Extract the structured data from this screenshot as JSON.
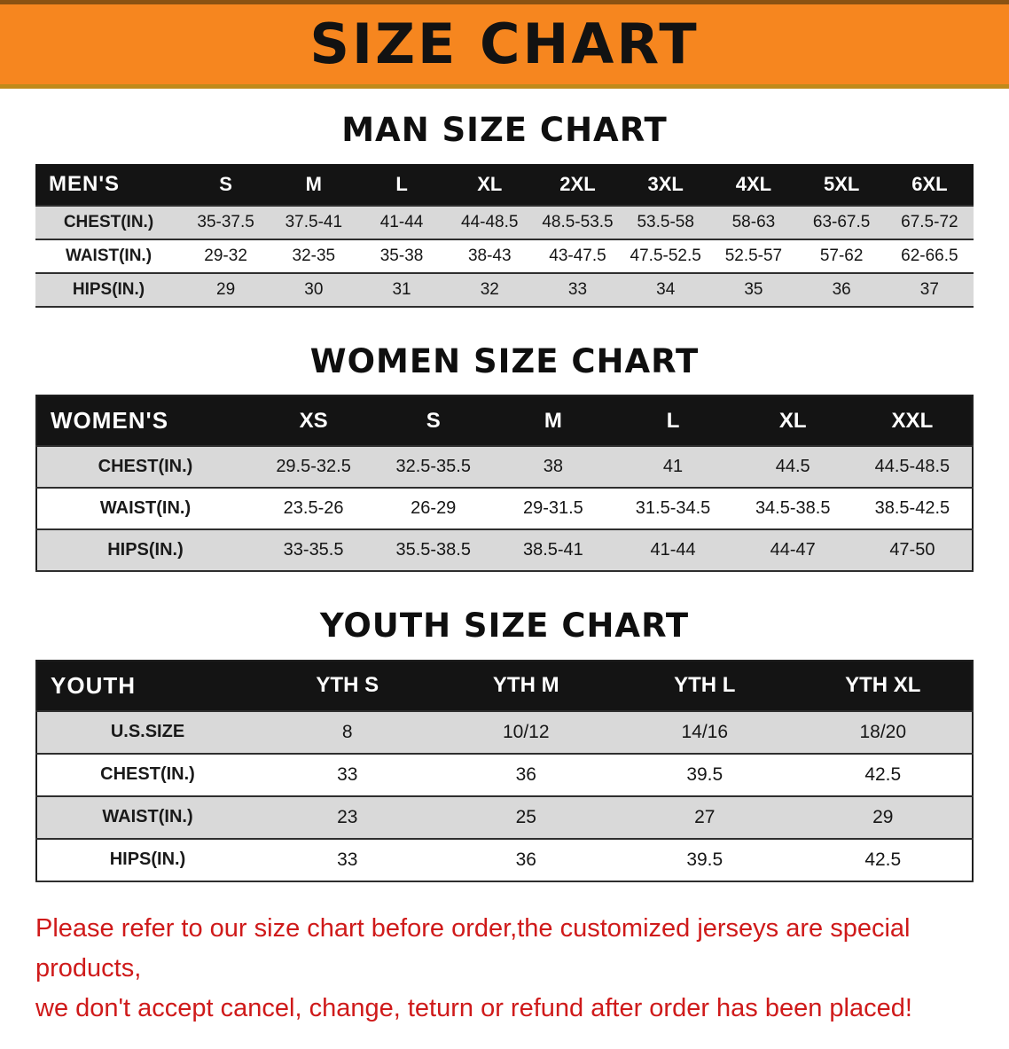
{
  "banner": {
    "title": "SIZE CHART"
  },
  "colors": {
    "banner_orange": "#f6861f",
    "table_header_black": "#141414",
    "row_gray": "#d9d9d9",
    "disclaimer_red": "#cf1a1a"
  },
  "sections": [
    {
      "heading": "MAN SIZE CHART",
      "table": {
        "corner": "MEN'S",
        "columns": [
          "S",
          "M",
          "L",
          "XL",
          "2XL",
          "3XL",
          "4XL",
          "5XL",
          "6XL"
        ],
        "rows": [
          {
            "label": "CHEST(IN.)",
            "values": [
              "35-37.5",
              "37.5-41",
              "41-44",
              "44-48.5",
              "48.5-53.5",
              "53.5-58",
              "58-63",
              "63-67.5",
              "67.5-72"
            ]
          },
          {
            "label": "WAIST(IN.)",
            "values": [
              "29-32",
              "32-35",
              "35-38",
              "38-43",
              "43-47.5",
              "47.5-52.5",
              "52.5-57",
              "57-62",
              "62-66.5"
            ]
          },
          {
            "label": "HIPS(IN.)",
            "values": [
              "29",
              "30",
              "31",
              "32",
              "33",
              "34",
              "35",
              "36",
              "37"
            ]
          }
        ]
      }
    },
    {
      "heading": "WOMEN SIZE CHART",
      "table": {
        "corner": "WOMEN'S",
        "columns": [
          "XS",
          "S",
          "M",
          "L",
          "XL",
          "XXL"
        ],
        "rows": [
          {
            "label": "CHEST(IN.)",
            "values": [
              "29.5-32.5",
              "32.5-35.5",
              "38",
              "41",
              "44.5",
              "44.5-48.5"
            ]
          },
          {
            "label": "WAIST(IN.)",
            "values": [
              "23.5-26",
              "26-29",
              "29-31.5",
              "31.5-34.5",
              "34.5-38.5",
              "38.5-42.5"
            ]
          },
          {
            "label": "HIPS(IN.)",
            "values": [
              "33-35.5",
              "35.5-38.5",
              "38.5-41",
              "41-44",
              "44-47",
              "47-50"
            ]
          }
        ]
      }
    },
    {
      "heading": "YOUTH SIZE CHART",
      "table": {
        "corner": "YOUTH",
        "columns": [
          "YTH S",
          "YTH M",
          "YTH L",
          "YTH XL"
        ],
        "rows": [
          {
            "label": "U.S.SIZE",
            "values": [
              "8",
              "10/12",
              "14/16",
              "18/20"
            ]
          },
          {
            "label": "CHEST(IN.)",
            "values": [
              "33",
              "36",
              "39.5",
              "42.5"
            ]
          },
          {
            "label": "WAIST(IN.)",
            "values": [
              "23",
              "25",
              "27",
              "29"
            ]
          },
          {
            "label": "HIPS(IN.)",
            "values": [
              "33",
              "36",
              "39.5",
              "42.5"
            ]
          }
        ]
      }
    }
  ],
  "disclaimer": {
    "line1": "Please refer to our size chart before order,the customized jerseys are special products,",
    "line2": "we don't accept cancel, change, teturn or refund after order has been placed!"
  }
}
